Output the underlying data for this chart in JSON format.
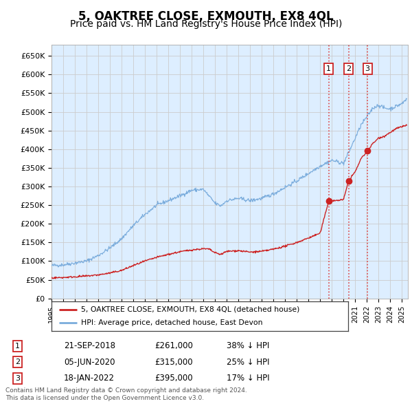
{
  "title": "5, OAKTREE CLOSE, EXMOUTH, EX8 4QL",
  "subtitle": "Price paid vs. HM Land Registry's House Price Index (HPI)",
  "title_fontsize": 12,
  "subtitle_fontsize": 10,
  "background_color": "#ffffff",
  "plot_bg_color": "#ddeeff",
  "grid_color": "#cccccc",
  "ylabel_vals": [
    0,
    50000,
    100000,
    150000,
    200000,
    250000,
    300000,
    350000,
    400000,
    450000,
    500000,
    550000,
    600000,
    650000
  ],
  "ylabel_labels": [
    "£0",
    "£50K",
    "£100K",
    "£150K",
    "£200K",
    "£250K",
    "£300K",
    "£350K",
    "£400K",
    "£450K",
    "£500K",
    "£550K",
    "£600K",
    "£650K"
  ],
  "xlim_start": 1995.0,
  "xlim_end": 2025.5,
  "ylim_min": 0,
  "ylim_max": 680000,
  "transactions": [
    {
      "id": 1,
      "date_str": "21-SEP-2018",
      "date_x": 2018.72,
      "price": 261000,
      "pct": "38%"
    },
    {
      "id": 2,
      "date_str": "05-JUN-2020",
      "date_x": 2020.42,
      "price": 315000,
      "pct": "25%"
    },
    {
      "id": 3,
      "date_str": "18-JAN-2022",
      "date_x": 2022.04,
      "price": 395000,
      "pct": "17%"
    }
  ],
  "legend_line1": "5, OAKTREE CLOSE, EXMOUTH, EX8 4QL (detached house)",
  "legend_line2": "HPI: Average price, detached house, East Devon",
  "footer_line1": "Contains HM Land Registry data © Crown copyright and database right 2024.",
  "footer_line2": "This data is licensed under the Open Government Licence v3.0.",
  "hpi_color": "#7aacdc",
  "price_color": "#cc2222",
  "dashed_line_color": "#dd4444",
  "hpi_anchors_x": [
    1995.0,
    1996.0,
    1997.0,
    1998.0,
    1999.0,
    2000.0,
    2001.0,
    2002.0,
    2003.0,
    2004.0,
    2005.0,
    2006.0,
    2007.0,
    2008.0,
    2009.0,
    2009.5,
    2010.0,
    2011.0,
    2012.0,
    2013.0,
    2014.0,
    2015.0,
    2016.0,
    2017.0,
    2018.0,
    2019.0,
    2020.0,
    2021.0,
    2021.5,
    2022.0,
    2022.5,
    2023.0,
    2023.5,
    2024.0,
    2024.5,
    2025.0,
    2025.4
  ],
  "hpi_anchors_y": [
    88000,
    90000,
    95000,
    100000,
    115000,
    135000,
    160000,
    195000,
    225000,
    250000,
    262000,
    275000,
    290000,
    292000,
    255000,
    248000,
    262000,
    268000,
    262000,
    268000,
    280000,
    298000,
    315000,
    335000,
    355000,
    370000,
    362000,
    430000,
    465000,
    487000,
    510000,
    518000,
    510000,
    508000,
    515000,
    522000,
    535000
  ],
  "price_anchors_x": [
    1995.0,
    1996.0,
    1997.0,
    1998.0,
    1999.0,
    2000.0,
    2001.0,
    2002.0,
    2003.0,
    2004.0,
    2005.0,
    2006.0,
    2007.0,
    2008.0,
    2008.5,
    2009.0,
    2009.5,
    2010.0,
    2011.0,
    2012.0,
    2013.0,
    2014.0,
    2015.0,
    2016.0,
    2017.0,
    2018.0,
    2018.72,
    2019.0,
    2019.5,
    2020.0,
    2020.42,
    2021.0,
    2021.5,
    2022.04,
    2022.5,
    2023.0,
    2023.5,
    2024.0,
    2024.5,
    2025.0,
    2025.4
  ],
  "price_anchors_y": [
    55000,
    56000,
    58000,
    60000,
    63000,
    68000,
    75000,
    88000,
    100000,
    110000,
    118000,
    125000,
    130000,
    133000,
    132000,
    122000,
    118000,
    126000,
    128000,
    124000,
    126000,
    132000,
    140000,
    150000,
    162000,
    175000,
    261000,
    261000,
    263000,
    265000,
    315000,
    340000,
    375000,
    395000,
    415000,
    430000,
    435000,
    445000,
    455000,
    460000,
    465000
  ]
}
